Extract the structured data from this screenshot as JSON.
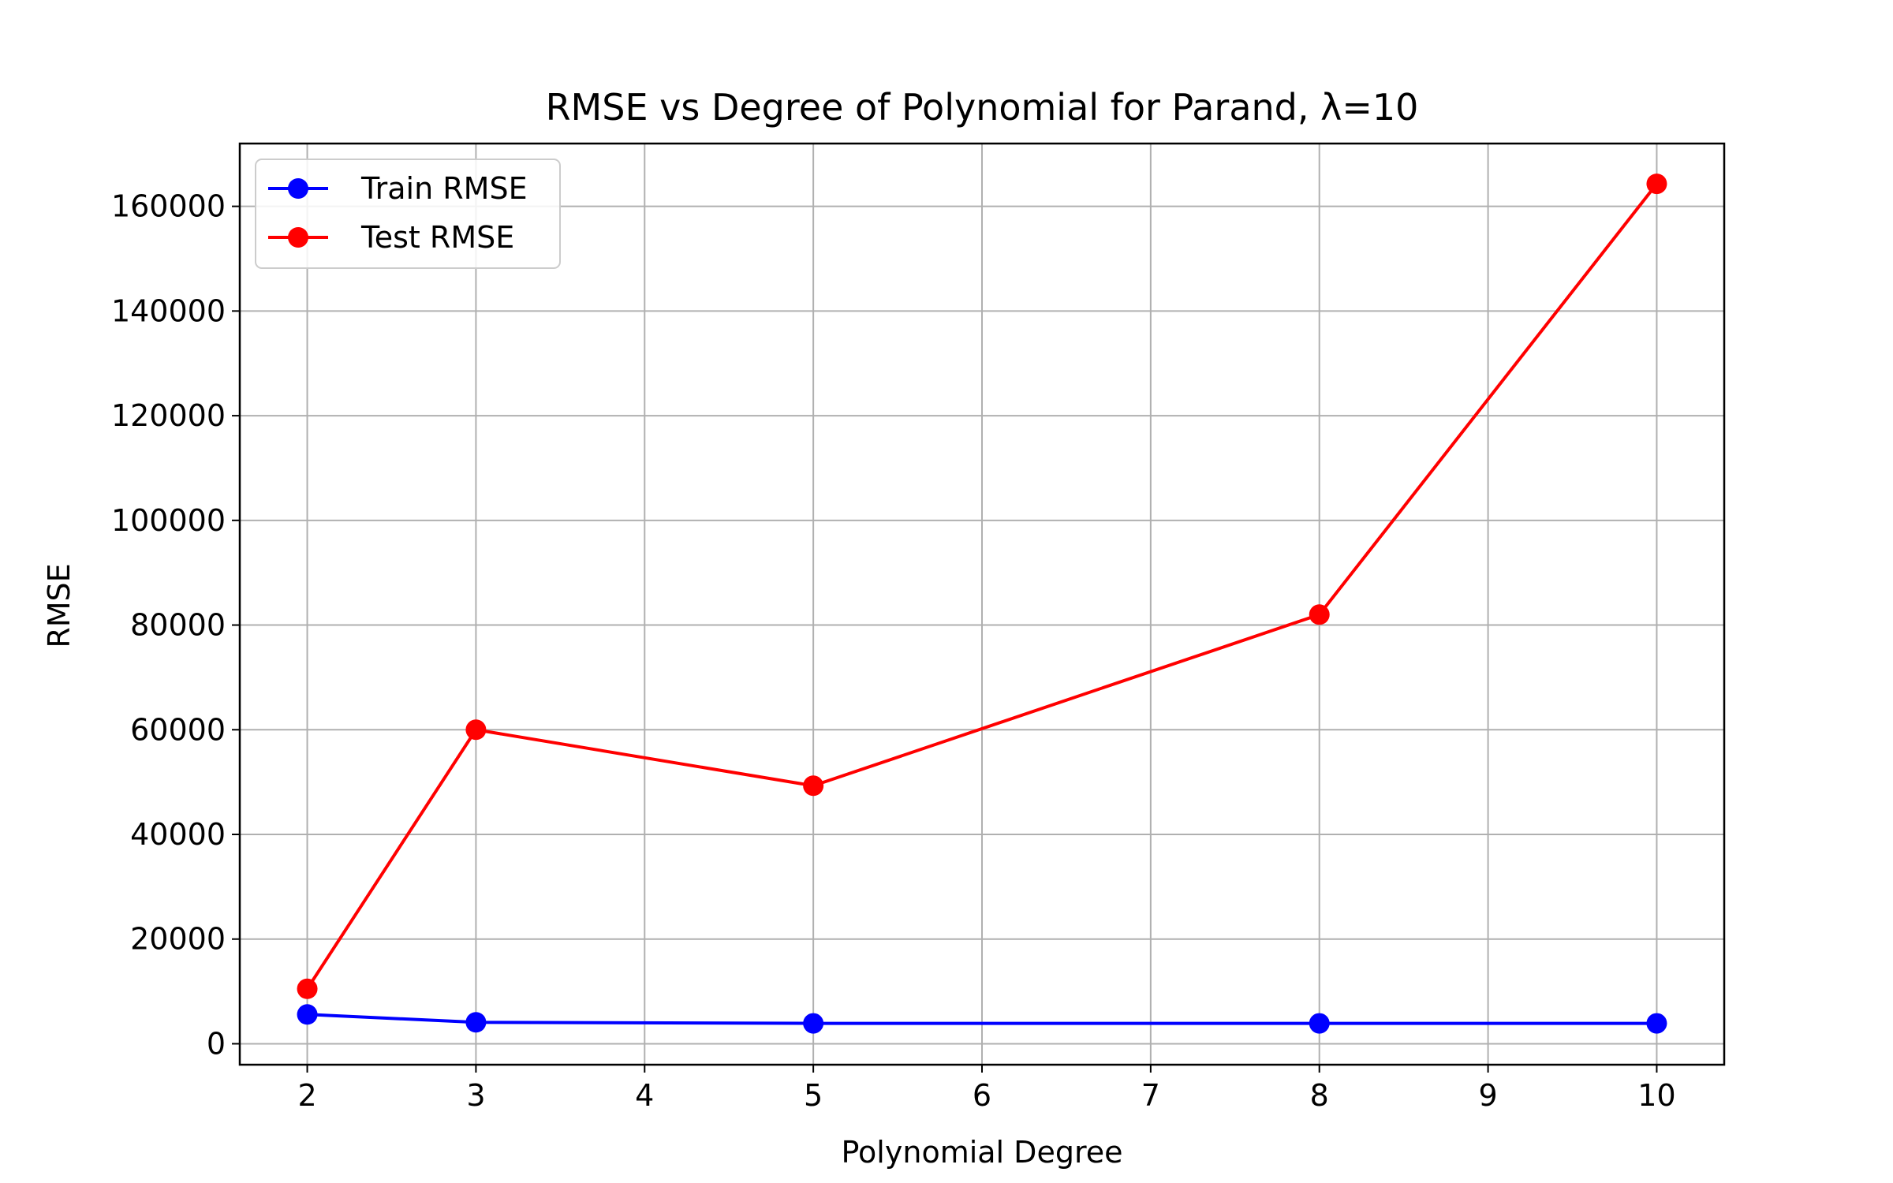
{
  "chart_data": {
    "type": "line",
    "title": "RMSE vs Degree of Polynomial for Parand, λ=10",
    "xlabel": "Polynomial Degree",
    "ylabel": "RMSE",
    "x": [
      2,
      3,
      5,
      8,
      10
    ],
    "xticks": [
      "2",
      "3",
      "4",
      "5",
      "6",
      "7",
      "8",
      "9",
      "10"
    ],
    "yticks": [
      "0",
      "20000",
      "40000",
      "60000",
      "80000",
      "100000",
      "120000",
      "140000",
      "160000"
    ],
    "xlim": [
      1.6,
      10.4
    ],
    "ylim": [
      -4000,
      172000
    ],
    "grid": true,
    "legend_position": "top-left",
    "series": [
      {
        "name": "Train RMSE",
        "color": "#0000ff",
        "marker": "circle",
        "values": [
          5600,
          4100,
          3900,
          3900,
          3900
        ]
      },
      {
        "name": "Test RMSE",
        "color": "#ff0000",
        "marker": "circle",
        "values": [
          10500,
          60000,
          49300,
          82000,
          164300
        ]
      }
    ]
  }
}
